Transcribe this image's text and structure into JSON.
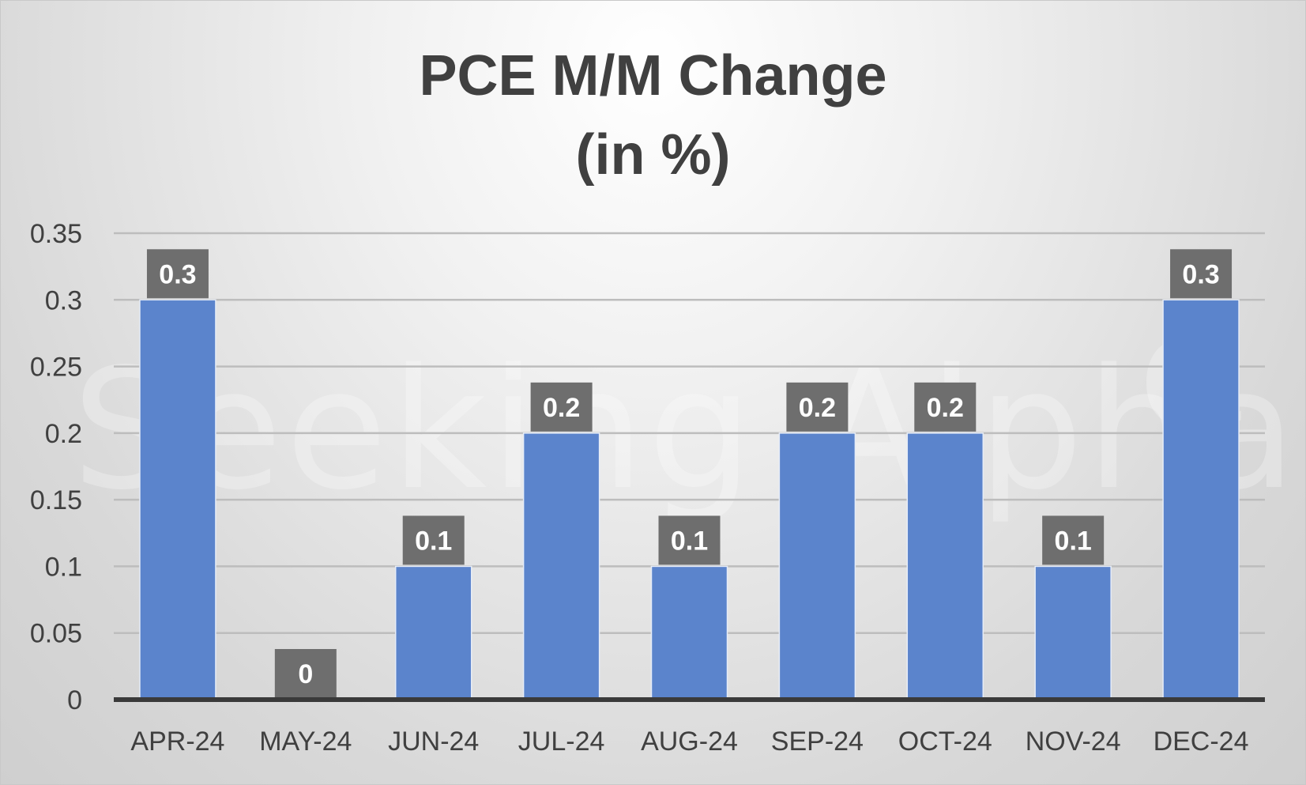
{
  "chart_data": {
    "type": "bar",
    "title": [
      "PCE M/M Change",
      "(in %)"
    ],
    "categories": [
      "APR-24",
      "MAY-24",
      "JUN-24",
      "JUL-24",
      "AUG-24",
      "SEP-24",
      "OCT-24",
      "NOV-24",
      "DEC-24"
    ],
    "values": [
      0.3,
      0,
      0.1,
      0.2,
      0.1,
      0.2,
      0.2,
      0.1,
      0.3
    ],
    "data_labels": [
      "0.3",
      "0",
      "0.1",
      "0.2",
      "0.1",
      "0.2",
      "0.2",
      "0.1",
      "0.3"
    ],
    "ylim": [
      0,
      0.35
    ],
    "yticks": [
      0,
      0.05,
      0.1,
      0.15,
      0.2,
      0.25,
      0.3,
      0.35
    ],
    "ytick_labels": [
      "0",
      "0.05",
      "0.1",
      "0.15",
      "0.2",
      "0.25",
      "0.3",
      "0.35"
    ],
    "grid": true,
    "legend": "none",
    "colors": {
      "bar": "#5b84cc",
      "bar_edge": "#e6ecf7",
      "label_box": "#6e6e6e",
      "label_text": "#ffffff",
      "axis_text": "#404040",
      "gridline": "#bdbdbd",
      "baseline": "#3a3a3a"
    }
  },
  "watermark": {
    "text": "Seeking Alpha",
    "symbol": "α"
  }
}
